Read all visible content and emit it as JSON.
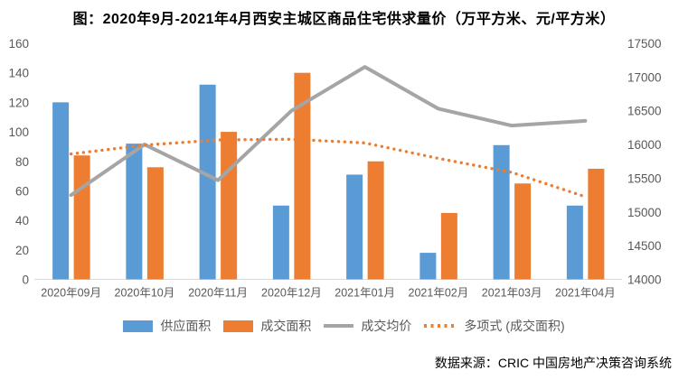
{
  "chart": {
    "title": "图：2020年9月-2021年4月西安主城区商品住宅供求量价（万平方米、元/平方米）"
  },
  "chart_data": {
    "type": "bar",
    "subtype": "combo-bar-line-dual-axis",
    "title": "图：2020年9月-2021年4月西安主城区商品住宅供求量价（万平方米、元/平方米）",
    "categories": [
      "2020年09月",
      "2020年10月",
      "2020年11月",
      "2020年12月",
      "2021年01月",
      "2021年02月",
      "2021年03月",
      "2021年04月"
    ],
    "series": [
      {
        "name": "供应面积",
        "type": "bar",
        "axis": "left",
        "color": "#5B9BD5",
        "values": [
          120,
          92,
          132,
          50,
          71,
          18,
          91,
          50
        ]
      },
      {
        "name": "成交面积",
        "type": "bar",
        "axis": "left",
        "color": "#ED7D31",
        "values": [
          84,
          76,
          100,
          140,
          80,
          45,
          65,
          75
        ]
      },
      {
        "name": "成交均价",
        "type": "line",
        "axis": "right",
        "color": "#A5A5A5",
        "values": [
          15250,
          16000,
          15470,
          16500,
          17150,
          16530,
          16280,
          16350
        ]
      },
      {
        "name": "多项式 (成交面积)",
        "type": "dotted-line",
        "axis": "left",
        "color": "#ED7D31",
        "values": [
          85,
          91,
          94.5,
          95,
          92.5,
          82,
          72.5,
          56
        ]
      }
    ],
    "left_axis": {
      "min": 0,
      "max": 160,
      "step": 20,
      "tick_labels": [
        "0",
        "20",
        "40",
        "60",
        "80",
        "100",
        "120",
        "140",
        "160"
      ]
    },
    "right_axis": {
      "min": 14000,
      "max": 17500,
      "step": 500,
      "tick_labels": [
        "14000",
        "14500",
        "15000",
        "15500",
        "16000",
        "16500",
        "17000",
        "17500"
      ]
    },
    "grid": false,
    "legend_position": "bottom",
    "axis_text_color": "#595959",
    "axis_line_color": "#D9D9D9"
  },
  "legend": [
    {
      "label": "供应面积",
      "swatch": "bar",
      "color": "#5B9BD5"
    },
    {
      "label": "成交面积",
      "swatch": "bar",
      "color": "#ED7D31"
    },
    {
      "label": "成交均价",
      "swatch": "line",
      "color": "#A5A5A5"
    },
    {
      "label": "多项式 (成交面积)",
      "swatch": "dots",
      "color": "#ED7D31"
    }
  ],
  "source": {
    "text": "数据来源：CRIC 中国房地产决策咨询系统"
  }
}
